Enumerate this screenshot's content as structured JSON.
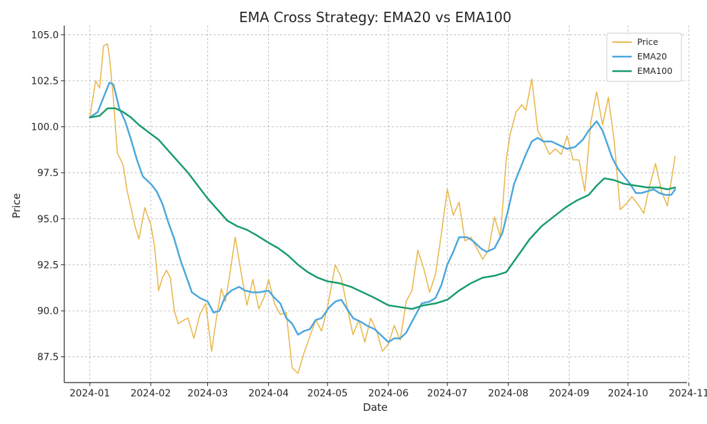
{
  "chart_data": {
    "type": "line",
    "title": "EMA Cross Strategy: EMA20 vs EMA100",
    "xlabel": "Date",
    "ylabel": "Price",
    "xlim": [
      "2023-12-19",
      "2024-10-31"
    ],
    "ylim": [
      86.1,
      105.5
    ],
    "x_ticks": [
      "2024-01-01",
      "2024-02-01",
      "2024-03-01",
      "2024-04-01",
      "2024-05-01",
      "2024-06-01",
      "2024-07-01",
      "2024-08-01",
      "2024-09-01",
      "2024-10-01",
      "2024-11-01"
    ],
    "x_tick_labels": [
      "2024-01",
      "2024-02",
      "2024-03",
      "2024-04",
      "2024-05",
      "2024-06",
      "2024-07",
      "2024-08",
      "2024-09",
      "2024-10",
      "2024-11"
    ],
    "y_ticks": [
      87.5,
      90.0,
      92.5,
      95.0,
      97.5,
      100.0,
      102.5,
      105.0
    ],
    "y_tick_labels": [
      "87.5",
      "90.0",
      "92.5",
      "95.0",
      "97.5",
      "100.0",
      "102.5",
      "105.0"
    ],
    "grid": true,
    "legend_position": "top-right",
    "series": [
      {
        "name": "Price",
        "color": "#E8B84E",
        "x": [
          "2024-01-01",
          "2024-01-04",
          "2024-01-06",
          "2024-01-08",
          "2024-01-10",
          "2024-01-11",
          "2024-01-13",
          "2024-01-15",
          "2024-01-18",
          "2024-01-20",
          "2024-01-22",
          "2024-01-24",
          "2024-01-26",
          "2024-01-29",
          "2024-02-01",
          "2024-02-03",
          "2024-02-05",
          "2024-02-07",
          "2024-02-09",
          "2024-02-11",
          "2024-02-13",
          "2024-02-15",
          "2024-02-18",
          "2024-02-20",
          "2024-02-23",
          "2024-02-26",
          "2024-02-29",
          "2024-03-03",
          "2024-03-05",
          "2024-03-08",
          "2024-03-10",
          "2024-03-12",
          "2024-03-15",
          "2024-03-18",
          "2024-03-21",
          "2024-03-24",
          "2024-03-27",
          "2024-03-30",
          "2024-04-01",
          "2024-04-04",
          "2024-04-07",
          "2024-04-10",
          "2024-04-13",
          "2024-04-16",
          "2024-04-19",
          "2024-04-22",
          "2024-04-25",
          "2024-04-28",
          "2024-05-01",
          "2024-05-05",
          "2024-05-08",
          "2024-05-11",
          "2024-05-14",
          "2024-05-17",
          "2024-05-20",
          "2024-05-23",
          "2024-05-26",
          "2024-05-29",
          "2024-06-01",
          "2024-06-04",
          "2024-06-07",
          "2024-06-10",
          "2024-06-13",
          "2024-06-16",
          "2024-06-19",
          "2024-06-22",
          "2024-06-25",
          "2024-06-28",
          "2024-07-01",
          "2024-07-04",
          "2024-07-07",
          "2024-07-10",
          "2024-07-13",
          "2024-07-16",
          "2024-07-19",
          "2024-07-22",
          "2024-07-25",
          "2024-07-28",
          "2024-07-31",
          "2024-08-02",
          "2024-08-05",
          "2024-08-08",
          "2024-08-10",
          "2024-08-13",
          "2024-08-16",
          "2024-08-19",
          "2024-08-22",
          "2024-08-25",
          "2024-08-28",
          "2024-08-31",
          "2024-09-03",
          "2024-09-06",
          "2024-09-09",
          "2024-09-12",
          "2024-09-15",
          "2024-09-18",
          "2024-09-21",
          "2024-09-24",
          "2024-09-27",
          "2024-09-30",
          "2024-10-03",
          "2024-10-06",
          "2024-10-09",
          "2024-10-12",
          "2024-10-15",
          "2024-10-18",
          "2024-10-21",
          "2024-10-25"
        ],
        "values": [
          100.5,
          102.5,
          102.1,
          104.4,
          104.5,
          103.8,
          101.5,
          98.6,
          97.9,
          96.5,
          95.6,
          94.6,
          93.9,
          95.6,
          94.7,
          93.5,
          91.1,
          91.8,
          92.2,
          91.8,
          90.0,
          89.3,
          89.5,
          89.6,
          88.5,
          89.8,
          90.4,
          87.8,
          89.3,
          91.2,
          90.5,
          91.8,
          94.0,
          92.1,
          90.3,
          91.7,
          90.1,
          90.8,
          91.7,
          90.4,
          89.8,
          89.9,
          86.9,
          86.6,
          87.7,
          88.6,
          89.5,
          88.9,
          90.2,
          92.5,
          91.8,
          90.2,
          88.7,
          89.5,
          88.3,
          89.6,
          88.9,
          87.8,
          88.2,
          89.2,
          88.4,
          90.5,
          91.1,
          93.3,
          92.3,
          91.0,
          92.0,
          94.2,
          96.6,
          95.2,
          95.9,
          93.8,
          94.0,
          93.4,
          92.8,
          93.3,
          95.1,
          94.0,
          98.2,
          99.6,
          100.8,
          101.2,
          100.9,
          102.6,
          99.8,
          99.2,
          98.5,
          98.8,
          98.5,
          99.5,
          98.2,
          98.2,
          96.5,
          100.2,
          101.9,
          100.1,
          101.6,
          99.2,
          95.5,
          95.8,
          96.2,
          95.8,
          95.3,
          96.8,
          98.0,
          96.5,
          95.7,
          98.4
        ]
      },
      {
        "name": "EMA20",
        "color": "#4BA6DE",
        "x": [
          "2024-01-01",
          "2024-01-05",
          "2024-01-08",
          "2024-01-11",
          "2024-01-13",
          "2024-01-16",
          "2024-01-19",
          "2024-01-22",
          "2024-01-25",
          "2024-01-28",
          "2024-02-01",
          "2024-02-04",
          "2024-02-07",
          "2024-02-10",
          "2024-02-13",
          "2024-02-16",
          "2024-02-19",
          "2024-02-22",
          "2024-02-26",
          "2024-03-01",
          "2024-03-04",
          "2024-03-07",
          "2024-03-10",
          "2024-03-13",
          "2024-03-17",
          "2024-03-20",
          "2024-03-24",
          "2024-03-27",
          "2024-04-01",
          "2024-04-04",
          "2024-04-07",
          "2024-04-10",
          "2024-04-13",
          "2024-04-16",
          "2024-04-19",
          "2024-04-22",
          "2024-04-25",
          "2024-04-28",
          "2024-05-02",
          "2024-05-05",
          "2024-05-08",
          "2024-05-11",
          "2024-05-14",
          "2024-05-18",
          "2024-05-21",
          "2024-05-25",
          "2024-05-29",
          "2024-06-01",
          "2024-06-04",
          "2024-06-07",
          "2024-06-10",
          "2024-06-14",
          "2024-06-18",
          "2024-06-22",
          "2024-06-25",
          "2024-06-28",
          "2024-07-01",
          "2024-07-04",
          "2024-07-07",
          "2024-07-11",
          "2024-07-14",
          "2024-07-18",
          "2024-07-21",
          "2024-07-25",
          "2024-07-29",
          "2024-08-01",
          "2024-08-04",
          "2024-08-07",
          "2024-08-10",
          "2024-08-13",
          "2024-08-16",
          "2024-08-19",
          "2024-08-23",
          "2024-08-27",
          "2024-08-31",
          "2024-09-04",
          "2024-09-08",
          "2024-09-11",
          "2024-09-15",
          "2024-09-18",
          "2024-09-20",
          "2024-09-23",
          "2024-09-26",
          "2024-09-29",
          "2024-10-02",
          "2024-10-05",
          "2024-10-08",
          "2024-10-11",
          "2024-10-14",
          "2024-10-17",
          "2024-10-20",
          "2024-10-23",
          "2024-10-25"
        ],
        "values": [
          100.5,
          100.8,
          101.6,
          102.4,
          102.3,
          101.0,
          100.3,
          99.3,
          98.2,
          97.3,
          96.9,
          96.5,
          95.8,
          94.8,
          93.9,
          92.8,
          91.9,
          91.0,
          90.7,
          90.5,
          89.9,
          90.0,
          90.8,
          91.1,
          91.3,
          91.1,
          91.0,
          91.0,
          91.1,
          90.7,
          90.4,
          89.6,
          89.3,
          88.7,
          88.9,
          89.0,
          89.5,
          89.6,
          90.2,
          90.5,
          90.6,
          90.1,
          89.6,
          89.4,
          89.2,
          89.0,
          88.6,
          88.3,
          88.5,
          88.5,
          88.8,
          89.6,
          90.4,
          90.5,
          90.7,
          91.4,
          92.5,
          93.2,
          94.0,
          94.0,
          93.8,
          93.4,
          93.2,
          93.4,
          94.2,
          95.5,
          96.9,
          97.7,
          98.5,
          99.2,
          99.4,
          99.2,
          99.2,
          99.0,
          98.8,
          98.9,
          99.3,
          99.8,
          100.3,
          99.8,
          99.2,
          98.3,
          97.7,
          97.3,
          96.9,
          96.4,
          96.4,
          96.5,
          96.6,
          96.4,
          96.3,
          96.3,
          96.6
        ]
      },
      {
        "name": "EMA100",
        "color": "#179B6B",
        "x": [
          "2024-01-01",
          "2024-01-06",
          "2024-01-10",
          "2024-01-14",
          "2024-01-18",
          "2024-01-22",
          "2024-01-26",
          "2024-01-31",
          "2024-02-05",
          "2024-02-10",
          "2024-02-15",
          "2024-02-20",
          "2024-02-25",
          "2024-03-01",
          "2024-03-06",
          "2024-03-11",
          "2024-03-16",
          "2024-03-21",
          "2024-03-26",
          "2024-04-01",
          "2024-04-06",
          "2024-04-11",
          "2024-04-16",
          "2024-04-21",
          "2024-04-26",
          "2024-05-01",
          "2024-05-07",
          "2024-05-13",
          "2024-05-19",
          "2024-05-25",
          "2024-06-01",
          "2024-06-07",
          "2024-06-13",
          "2024-06-19",
          "2024-06-25",
          "2024-07-01",
          "2024-07-07",
          "2024-07-13",
          "2024-07-19",
          "2024-07-25",
          "2024-07-31",
          "2024-08-06",
          "2024-08-12",
          "2024-08-18",
          "2024-08-24",
          "2024-08-30",
          "2024-09-05",
          "2024-09-11",
          "2024-09-15",
          "2024-09-19",
          "2024-09-24",
          "2024-09-29",
          "2024-10-05",
          "2024-10-11",
          "2024-10-17",
          "2024-10-21",
          "2024-10-25"
        ],
        "values": [
          100.5,
          100.6,
          101.0,
          101.0,
          100.8,
          100.5,
          100.1,
          99.7,
          99.3,
          98.7,
          98.1,
          97.5,
          96.8,
          96.1,
          95.5,
          94.9,
          94.6,
          94.4,
          94.1,
          93.7,
          93.4,
          93.0,
          92.5,
          92.1,
          91.8,
          91.6,
          91.5,
          91.3,
          91.0,
          90.7,
          90.3,
          90.2,
          90.1,
          90.3,
          90.4,
          90.6,
          91.1,
          91.5,
          91.8,
          91.9,
          92.1,
          93.0,
          93.9,
          94.6,
          95.1,
          95.6,
          96.0,
          96.3,
          96.8,
          97.2,
          97.1,
          96.9,
          96.8,
          96.7,
          96.7,
          96.6,
          96.7
        ]
      }
    ]
  }
}
